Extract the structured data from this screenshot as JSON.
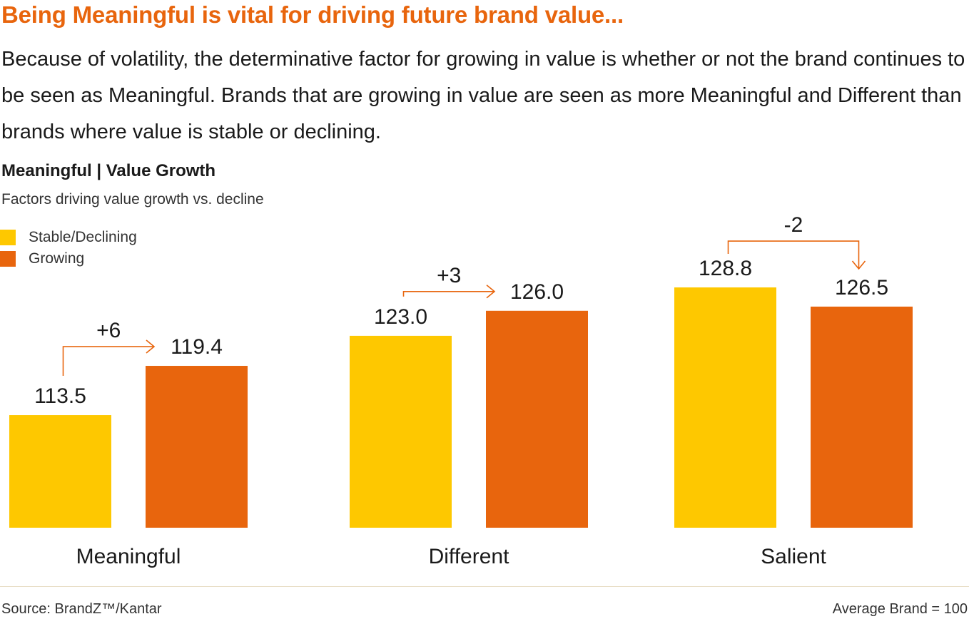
{
  "header": {
    "headline": "Being Meaningful is vital for driving future brand value...",
    "intro": "Because of volatility, the determinative factor for growing in value is whether or not the brand continues to be seen as Meaningful. Brands that are growing in value are seen as more Meaningful and Different than brands where value is stable or declining."
  },
  "chart_data": {
    "type": "bar",
    "title": "Meaningful | Value Growth",
    "subtitle": "Factors driving value growth vs. decline",
    "categories": [
      "Meaningful",
      "Different",
      "Salient"
    ],
    "series": [
      {
        "name": "Stable/Declining",
        "color": "#fec800",
        "values": [
          113.5,
          123.0,
          128.8
        ],
        "labels": [
          "113.5",
          "123.0",
          "128.8"
        ]
      },
      {
        "name": "Growing",
        "color": "#e8650d",
        "values": [
          119.4,
          126.0,
          126.5
        ],
        "labels": [
          "119.4",
          "126.0",
          "126.5"
        ]
      }
    ],
    "differences": [
      "+6",
      "+3",
      "-2"
    ],
    "legend_position": "top-left",
    "grid": false,
    "value_axis": "hidden"
  },
  "footer": {
    "source": "Source: BrandZ™/Kantar",
    "note": "Average Brand = 100"
  }
}
